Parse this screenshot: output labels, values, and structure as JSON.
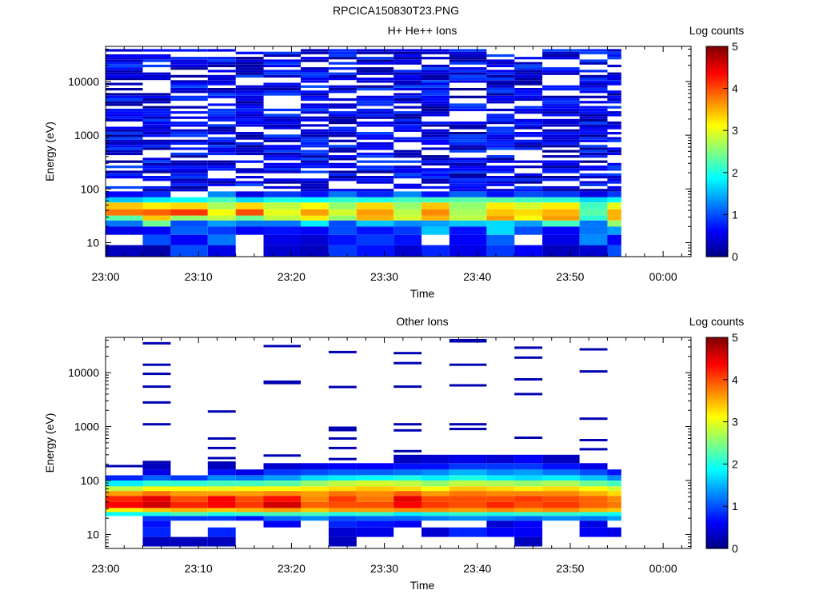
{
  "figure_title": "RPCICA150830T23.PNG",
  "colormap": {
    "name": "jet",
    "stops": [
      "#000080",
      "#0000ff",
      "#0080ff",
      "#00ffff",
      "#80ff80",
      "#ffff00",
      "#ff8000",
      "#ff0000",
      "#800000"
    ]
  },
  "chart_data": [
    {
      "type": "heatmap",
      "title": "H+ He++ Ions",
      "xlabel": "Time",
      "ylabel": "Energy (eV)",
      "colorbar_label": "Log counts",
      "colorbar_ticks": [
        "0",
        "1",
        "2",
        "3",
        "4",
        "5"
      ],
      "clim": [
        0,
        5
      ],
      "y_scale": "log",
      "ylim_eV": [
        5.5,
        45000
      ],
      "y_ticks": [
        "10",
        "100",
        "1000",
        "10000"
      ],
      "xlim_minutes": [
        0,
        63
      ],
      "x_ticks": [
        "23:00",
        "23:10",
        "23:20",
        "23:30",
        "23:40",
        "23:50",
        "00:00"
      ],
      "data_end_minute": 55.5,
      "time_bins_minutes": [
        0,
        4,
        7,
        11,
        14,
        17,
        21,
        24,
        27,
        31,
        34,
        37,
        41,
        44,
        47,
        51,
        54
      ],
      "energy_bands_eV": [
        {
          "range": [
            5.5,
            9
          ],
          "levels": [
            0.3,
            0.2,
            1.0,
            0.5,
            null,
            0.4,
            0.3,
            0.9,
            0.7,
            0.4,
            0.8,
            0.5,
            0.9,
            0.6,
            0.3,
            0.4,
            1.0
          ]
        },
        {
          "range": [
            9,
            14
          ],
          "levels": [
            null,
            1.0,
            0.6,
            1.2,
            null,
            0.5,
            0.4,
            0.7,
            0.9,
            0.7,
            null,
            0.6,
            1.1,
            null,
            0.5,
            1.3,
            0.6
          ]
        },
        {
          "range": [
            14,
            20
          ],
          "levels": [
            0.5,
            0.6,
            1.1,
            0.9,
            0.6,
            0.7,
            0.6,
            1.0,
            0.7,
            0.9,
            1.6,
            0.7,
            1.7,
            1.0,
            0.6,
            1.2,
            1.4
          ]
        },
        {
          "range": [
            20,
            26
          ],
          "levels": [
            1.2,
            2.4,
            1.0,
            1.4,
            1.2,
            1.2,
            1.8,
            1.0,
            1.6,
            1.3,
            1.4,
            1.6,
            1.7,
            1.4,
            2.2,
            1.2,
            2.6
          ]
        },
        {
          "range": [
            26,
            32
          ],
          "levels": [
            2.3,
            3.4,
            2.6,
            2.8,
            2.4,
            2.8,
            3.2,
            2.6,
            3.5,
            2.9,
            3.5,
            2.8,
            3.6,
            3.1,
            3.6,
            2.1,
            3.5
          ]
        },
        {
          "range": [
            32,
            42
          ],
          "levels": [
            3.8,
            3.9,
            4.1,
            3.1,
            4.0,
            3.0,
            3.6,
            2.9,
            3.6,
            2.8,
            3.7,
            2.7,
            3.4,
            3.3,
            3.5,
            2.3,
            3.5
          ]
        },
        {
          "range": [
            42,
            56
          ],
          "levels": [
            3.4,
            3.2,
            3.3,
            2.7,
            3.3,
            2.8,
            3.1,
            2.6,
            3.3,
            2.6,
            3.4,
            2.6,
            3.2,
            2.9,
            3.2,
            2.2,
            3.0
          ]
        },
        {
          "range": [
            56,
            70
          ],
          "levels": [
            1.6,
            1.8,
            1.9,
            2.2,
            1.7,
            2.0,
            1.9,
            2.1,
            2.0,
            2.2,
            2.2,
            2.3,
            2.3,
            2.2,
            2.1,
            1.7,
            1.9
          ]
        },
        {
          "range": [
            70,
            90
          ],
          "levels": [
            0.6,
            0.8,
            null,
            1.3,
            0.5,
            0.9,
            0.7,
            1.2,
            0.8,
            1.3,
            0.7,
            1.1,
            0.7,
            1.0,
            0.9,
            0.5,
            0.9
          ]
        }
      ],
      "sparse_noise": {
        "range": [
          90,
          40000
        ],
        "rows": 55,
        "level_range": [
          0.1,
          1.0
        ],
        "empty_fraction": 0.3
      }
    },
    {
      "type": "heatmap",
      "title": "Other Ions",
      "xlabel": "Time",
      "ylabel": "Energy (eV)",
      "colorbar_label": "Log counts",
      "colorbar_ticks": [
        "0",
        "1",
        "2",
        "3",
        "4",
        "5"
      ],
      "clim": [
        0,
        5
      ],
      "y_scale": "log",
      "ylim_eV": [
        5.5,
        45000
      ],
      "y_ticks": [
        "10",
        "100",
        "1000",
        "10000"
      ],
      "xlim_minutes": [
        0,
        63
      ],
      "x_ticks": [
        "23:00",
        "23:10",
        "23:20",
        "23:30",
        "23:40",
        "23:50",
        "00:00"
      ],
      "data_end_minute": 55.5,
      "time_bins_minutes": [
        0,
        4,
        7,
        11,
        14,
        17,
        21,
        24,
        27,
        31,
        34,
        37,
        41,
        44,
        47,
        51,
        54
      ],
      "energy_bands_eV": [
        {
          "range": [
            6,
            9
          ],
          "levels": [
            null,
            0.3,
            0.3,
            0.3,
            null,
            null,
            null,
            0.3,
            null,
            null,
            null,
            null,
            null,
            0.3,
            null,
            null,
            null
          ]
        },
        {
          "range": [
            9,
            13.5
          ],
          "levels": [
            null,
            0.8,
            null,
            0.8,
            null,
            null,
            null,
            0.4,
            0.5,
            null,
            0.4,
            0.8,
            0.6,
            0.6,
            null,
            0.6,
            0.5
          ]
        },
        {
          "range": [
            13.5,
            18
          ],
          "levels": [
            null,
            0.7,
            null,
            null,
            null,
            0.6,
            null,
            0.8,
            0.7,
            0.6,
            null,
            null,
            0.4,
            0.6,
            null,
            0.5,
            null
          ]
        },
        {
          "range": [
            18,
            22
          ],
          "levels": [
            null,
            0.9,
            0.9,
            0.9,
            0.7,
            1.1,
            1.3,
            1.0,
            1.1,
            1.1,
            1.2,
            1.3,
            1.2,
            1.1,
            1.3,
            1.2,
            1.4
          ]
        },
        {
          "range": [
            22,
            26
          ],
          "levels": [
            1.9,
            2.0,
            2.2,
            2.0,
            2.1,
            2.2,
            2.2,
            2.0,
            2.1,
            1.8,
            2.0,
            2.1,
            2.0,
            2.1,
            2.1,
            2.0,
            1.9
          ]
        },
        {
          "range": [
            26,
            31
          ],
          "levels": [
            3.2,
            3.4,
            3.5,
            3.4,
            3.5,
            3.6,
            3.4,
            3.6,
            3.6,
            3.7,
            3.7,
            3.6,
            3.7,
            3.6,
            3.7,
            3.5,
            3.4
          ]
        },
        {
          "range": [
            31,
            40
          ],
          "levels": [
            4.4,
            4.6,
            4.2,
            4.4,
            4.1,
            4.6,
            3.9,
            4.0,
            4.0,
            4.4,
            4.1,
            4.0,
            4.2,
            4.0,
            4.1,
            3.9,
            3.8
          ]
        },
        {
          "range": [
            40,
            52
          ],
          "levels": [
            4.2,
            4.5,
            4.0,
            4.4,
            4.0,
            4.3,
            3.7,
            4.1,
            3.8,
            4.5,
            4.0,
            4.0,
            4.0,
            4.1,
            4.0,
            3.9,
            3.7
          ]
        },
        {
          "range": [
            52,
            64
          ],
          "levels": [
            3.6,
            3.8,
            3.6,
            3.6,
            3.6,
            3.7,
            3.6,
            3.8,
            3.7,
            3.9,
            3.6,
            3.8,
            3.7,
            3.7,
            3.7,
            3.5,
            3.3
          ]
        },
        {
          "range": [
            64,
            78
          ],
          "levels": [
            2.8,
            3.1,
            3.1,
            3.0,
            3.1,
            3.1,
            3.2,
            3.3,
            3.4,
            3.3,
            3.1,
            3.4,
            3.3,
            3.2,
            3.3,
            3.1,
            2.9
          ]
        },
        {
          "range": [
            78,
            100
          ],
          "levels": [
            1.8,
            2.1,
            2.1,
            2.2,
            2.2,
            2.3,
            2.6,
            2.8,
            2.9,
            2.8,
            2.6,
            2.8,
            2.7,
            2.6,
            2.7,
            2.4,
            2.2
          ]
        },
        {
          "range": [
            100,
            125
          ],
          "levels": [
            0.8,
            1.1,
            0.9,
            1.3,
            1.2,
            1.4,
            1.7,
            1.8,
            1.9,
            2.0,
            1.8,
            2.0,
            1.8,
            1.7,
            1.8,
            1.6,
            1.3
          ]
        },
        {
          "range": [
            125,
            160
          ],
          "levels": [
            null,
            0.5,
            null,
            0.7,
            0.5,
            0.9,
            1.0,
            1.1,
            1.1,
            1.2,
            1.3,
            1.5,
            1.3,
            1.4,
            1.2,
            1.0,
            0.7
          ]
        },
        {
          "range": [
            160,
            210
          ],
          "levels": [
            null,
            0.3,
            null,
            0.3,
            null,
            0.4,
            0.5,
            0.6,
            0.6,
            0.7,
            0.7,
            0.9,
            0.9,
            0.9,
            0.7,
            0.5,
            null
          ]
        },
        {
          "range": [
            210,
            300
          ],
          "levels": [
            null,
            null,
            null,
            null,
            null,
            null,
            null,
            null,
            null,
            0.3,
            0.4,
            0.5,
            0.4,
            0.6,
            0.3,
            null,
            null
          ]
        }
      ],
      "lines": [
        {
          "bin": 0,
          "e": 185
        },
        {
          "bin": 1,
          "e": 220
        },
        {
          "bin": 3,
          "e": 215
        },
        {
          "bin": 1,
          "e": 35000
        },
        {
          "bin": 1,
          "e": 14000
        },
        {
          "bin": 1,
          "e": 9500
        },
        {
          "bin": 1,
          "e": 5500
        },
        {
          "bin": 1,
          "e": 2800
        },
        {
          "bin": 1,
          "e": 1100
        },
        {
          "bin": 3,
          "e": 1900
        },
        {
          "bin": 3,
          "e": 600
        },
        {
          "bin": 3,
          "e": 400
        },
        {
          "bin": 3,
          "e": 260
        },
        {
          "bin": 5,
          "e": 31000
        },
        {
          "bin": 5,
          "e": 6800
        },
        {
          "bin": 5,
          "e": 6400
        },
        {
          "bin": 5,
          "e": 290
        },
        {
          "bin": 7,
          "e": 24000
        },
        {
          "bin": 7,
          "e": 5400
        },
        {
          "bin": 7,
          "e": 950
        },
        {
          "bin": 7,
          "e": 860
        },
        {
          "bin": 7,
          "e": 600
        },
        {
          "bin": 7,
          "e": 400
        },
        {
          "bin": 7,
          "e": 250
        },
        {
          "bin": 9,
          "e": 23000
        },
        {
          "bin": 9,
          "e": 15000
        },
        {
          "bin": 9,
          "e": 5500
        },
        {
          "bin": 9,
          "e": 1100
        },
        {
          "bin": 9,
          "e": 850
        },
        {
          "bin": 9,
          "e": 350
        },
        {
          "bin": 11,
          "e": 40000
        },
        {
          "bin": 11,
          "e": 38000
        },
        {
          "bin": 11,
          "e": 14000
        },
        {
          "bin": 11,
          "e": 5800
        },
        {
          "bin": 11,
          "e": 1100
        },
        {
          "bin": 11,
          "e": 900
        },
        {
          "bin": 13,
          "e": 29000
        },
        {
          "bin": 13,
          "e": 19000
        },
        {
          "bin": 13,
          "e": 7500
        },
        {
          "bin": 13,
          "e": 4000
        },
        {
          "bin": 13,
          "e": 620
        },
        {
          "bin": 15,
          "e": 27000
        },
        {
          "bin": 15,
          "e": 10500
        },
        {
          "bin": 15,
          "e": 1400
        },
        {
          "bin": 15,
          "e": 560
        },
        {
          "bin": 15,
          "e": 380
        }
      ]
    }
  ]
}
